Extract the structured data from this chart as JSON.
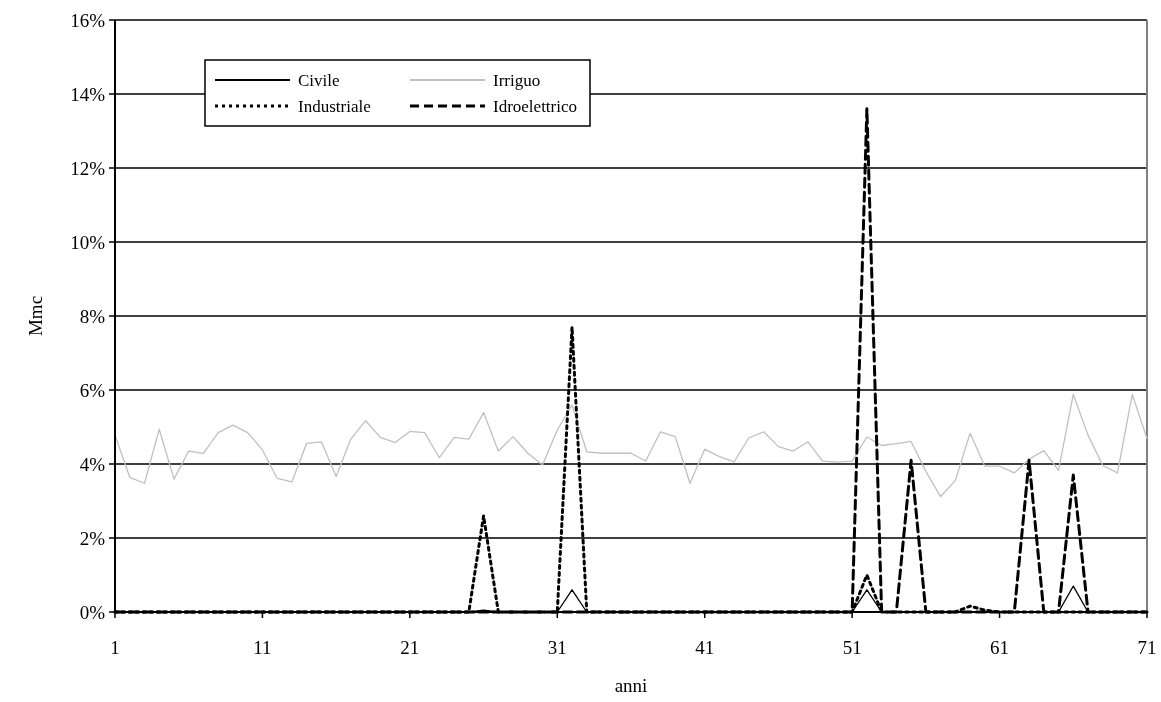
{
  "chart_data": {
    "type": "line",
    "xlabel": "anni",
    "ylabel": "Mmc",
    "xlim": [
      1,
      71
    ],
    "xticks": [
      1,
      11,
      21,
      31,
      41,
      51,
      61,
      71
    ],
    "ylim": [
      0,
      16
    ],
    "yticks": [
      {
        "value": 0,
        "label": "0%"
      },
      {
        "value": 2,
        "label": "2%"
      },
      {
        "value": 4,
        "label": "4%"
      },
      {
        "value": 6,
        "label": "6%"
      },
      {
        "value": 8,
        "label": "8%"
      },
      {
        "value": 10,
        "label": "10%"
      },
      {
        "value": 12,
        "label": "12%"
      },
      {
        "value": 14,
        "label": "14%"
      },
      {
        "value": 16,
        "label": "16%"
      }
    ],
    "grid": "y",
    "legend": "top left",
    "marker": "none",
    "x": [
      1,
      2,
      3,
      4,
      5,
      6,
      7,
      8,
      9,
      10,
      11,
      12,
      13,
      14,
      15,
      16,
      17,
      18,
      19,
      20,
      21,
      22,
      23,
      24,
      25,
      26,
      27,
      28,
      29,
      30,
      31,
      32,
      33,
      34,
      35,
      36,
      37,
      38,
      39,
      40,
      41,
      42,
      43,
      44,
      45,
      46,
      47,
      48,
      49,
      50,
      51,
      52,
      53,
      54,
      55,
      56,
      57,
      58,
      59,
      60,
      61,
      62,
      63,
      64,
      65,
      66,
      67,
      68,
      69,
      70,
      71
    ],
    "series": [
      {
        "name": "Civile",
        "color": "#000000",
        "line_style": "solid",
        "values": [
          0,
          0,
          0,
          0,
          0,
          0,
          0,
          0,
          0,
          0,
          0,
          0,
          0,
          0,
          0,
          0,
          0,
          0,
          0,
          0,
          0,
          0,
          0,
          0,
          0,
          0.05,
          0,
          0,
          0,
          0,
          0,
          0.6,
          0,
          0,
          0,
          0,
          0,
          0,
          0,
          0,
          0,
          0,
          0,
          0,
          0,
          0,
          0,
          0,
          0,
          0,
          0,
          0.6,
          0,
          0,
          0,
          0,
          0,
          0,
          0,
          0,
          0,
          0,
          0,
          0,
          0,
          0.7,
          0,
          0,
          0,
          0,
          0
        ]
      },
      {
        "name": "Irriguo",
        "color": "#c0c0c0",
        "line_style": "solid",
        "values": [
          4.78,
          3.64,
          3.48,
          4.94,
          3.59,
          4.35,
          4.29,
          4.85,
          5.05,
          4.85,
          4.38,
          3.61,
          3.52,
          4.56,
          4.6,
          3.66,
          4.68,
          5.17,
          4.72,
          4.58,
          4.88,
          4.85,
          4.17,
          4.72,
          4.67,
          5.39,
          4.35,
          4.74,
          4.29,
          3.97,
          4.92,
          5.59,
          4.33,
          4.29,
          4.29,
          4.29,
          4.08,
          4.87,
          4.74,
          3.48,
          4.4,
          4.2,
          4.06,
          4.71,
          4.87,
          4.47,
          4.35,
          4.6,
          4.08,
          4.05,
          4.08,
          4.73,
          4.5,
          4.55,
          4.61,
          3.8,
          3.12,
          3.55,
          4.83,
          3.94,
          3.94,
          3.76,
          4.13,
          4.36,
          3.83,
          5.88,
          4.78,
          3.96,
          3.76,
          5.88,
          4.69
        ]
      },
      {
        "name": "Industriale",
        "color": "#000000",
        "line_style": "dotted",
        "values": [
          0,
          0,
          0,
          0,
          0,
          0,
          0,
          0,
          0,
          0,
          0,
          0,
          0,
          0,
          0,
          0,
          0,
          0,
          0,
          0,
          0,
          0,
          0,
          0,
          0,
          2.6,
          0,
          0,
          0,
          0,
          0,
          7.7,
          0,
          0,
          0,
          0,
          0,
          0,
          0,
          0,
          0,
          0,
          0,
          0,
          0,
          0,
          0,
          0,
          0,
          0,
          0,
          1.0,
          0,
          0,
          0,
          0,
          0,
          0,
          0.16,
          0.05,
          0,
          0,
          0,
          0,
          0,
          0,
          0,
          0,
          0,
          0,
          0
        ]
      },
      {
        "name": "Idroelettrico",
        "color": "#000000",
        "line_style": "dashed",
        "values": [
          0,
          0,
          0,
          0,
          0,
          0,
          0,
          0,
          0,
          0,
          0,
          0,
          0,
          0,
          0,
          0,
          0,
          0,
          0,
          0,
          0,
          0,
          0,
          0,
          0,
          0,
          0,
          0,
          0,
          0,
          0,
          0,
          0,
          0,
          0,
          0,
          0,
          0,
          0,
          0,
          0,
          0,
          0,
          0,
          0,
          0,
          0,
          0,
          0,
          0,
          0,
          13.6,
          0,
          0,
          4.1,
          0,
          0,
          0,
          0,
          0,
          0,
          0,
          4.1,
          0,
          0,
          3.7,
          0,
          0,
          0,
          0,
          0
        ]
      }
    ]
  }
}
